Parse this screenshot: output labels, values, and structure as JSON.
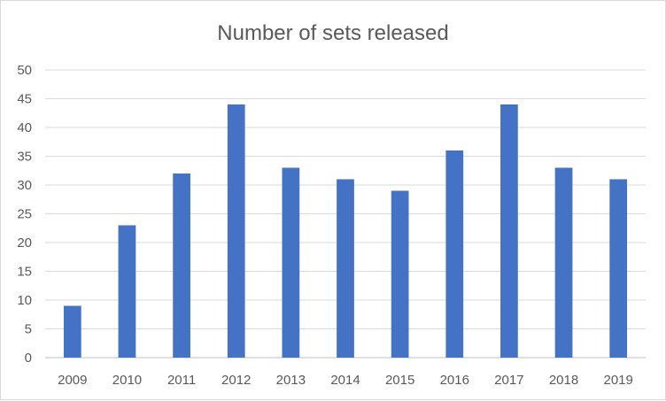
{
  "chart_data": {
    "type": "bar",
    "title": "Number of sets released",
    "xlabel": "",
    "ylabel": "",
    "categories": [
      "2009",
      "2010",
      "2011",
      "2012",
      "2013",
      "2014",
      "2015",
      "2016",
      "2017",
      "2018",
      "2019"
    ],
    "values": [
      9,
      23,
      32,
      44,
      33,
      31,
      29,
      36,
      44,
      33,
      31
    ],
    "ylim": [
      0,
      50
    ],
    "yticks": [
      0,
      5,
      10,
      15,
      20,
      25,
      30,
      35,
      40,
      45,
      50
    ],
    "grid": true,
    "legend": "none",
    "colors": {
      "bar": "#4472C4",
      "grid": "#d9d9d9",
      "axis": "#bfbfbf",
      "text": "#595959"
    }
  }
}
